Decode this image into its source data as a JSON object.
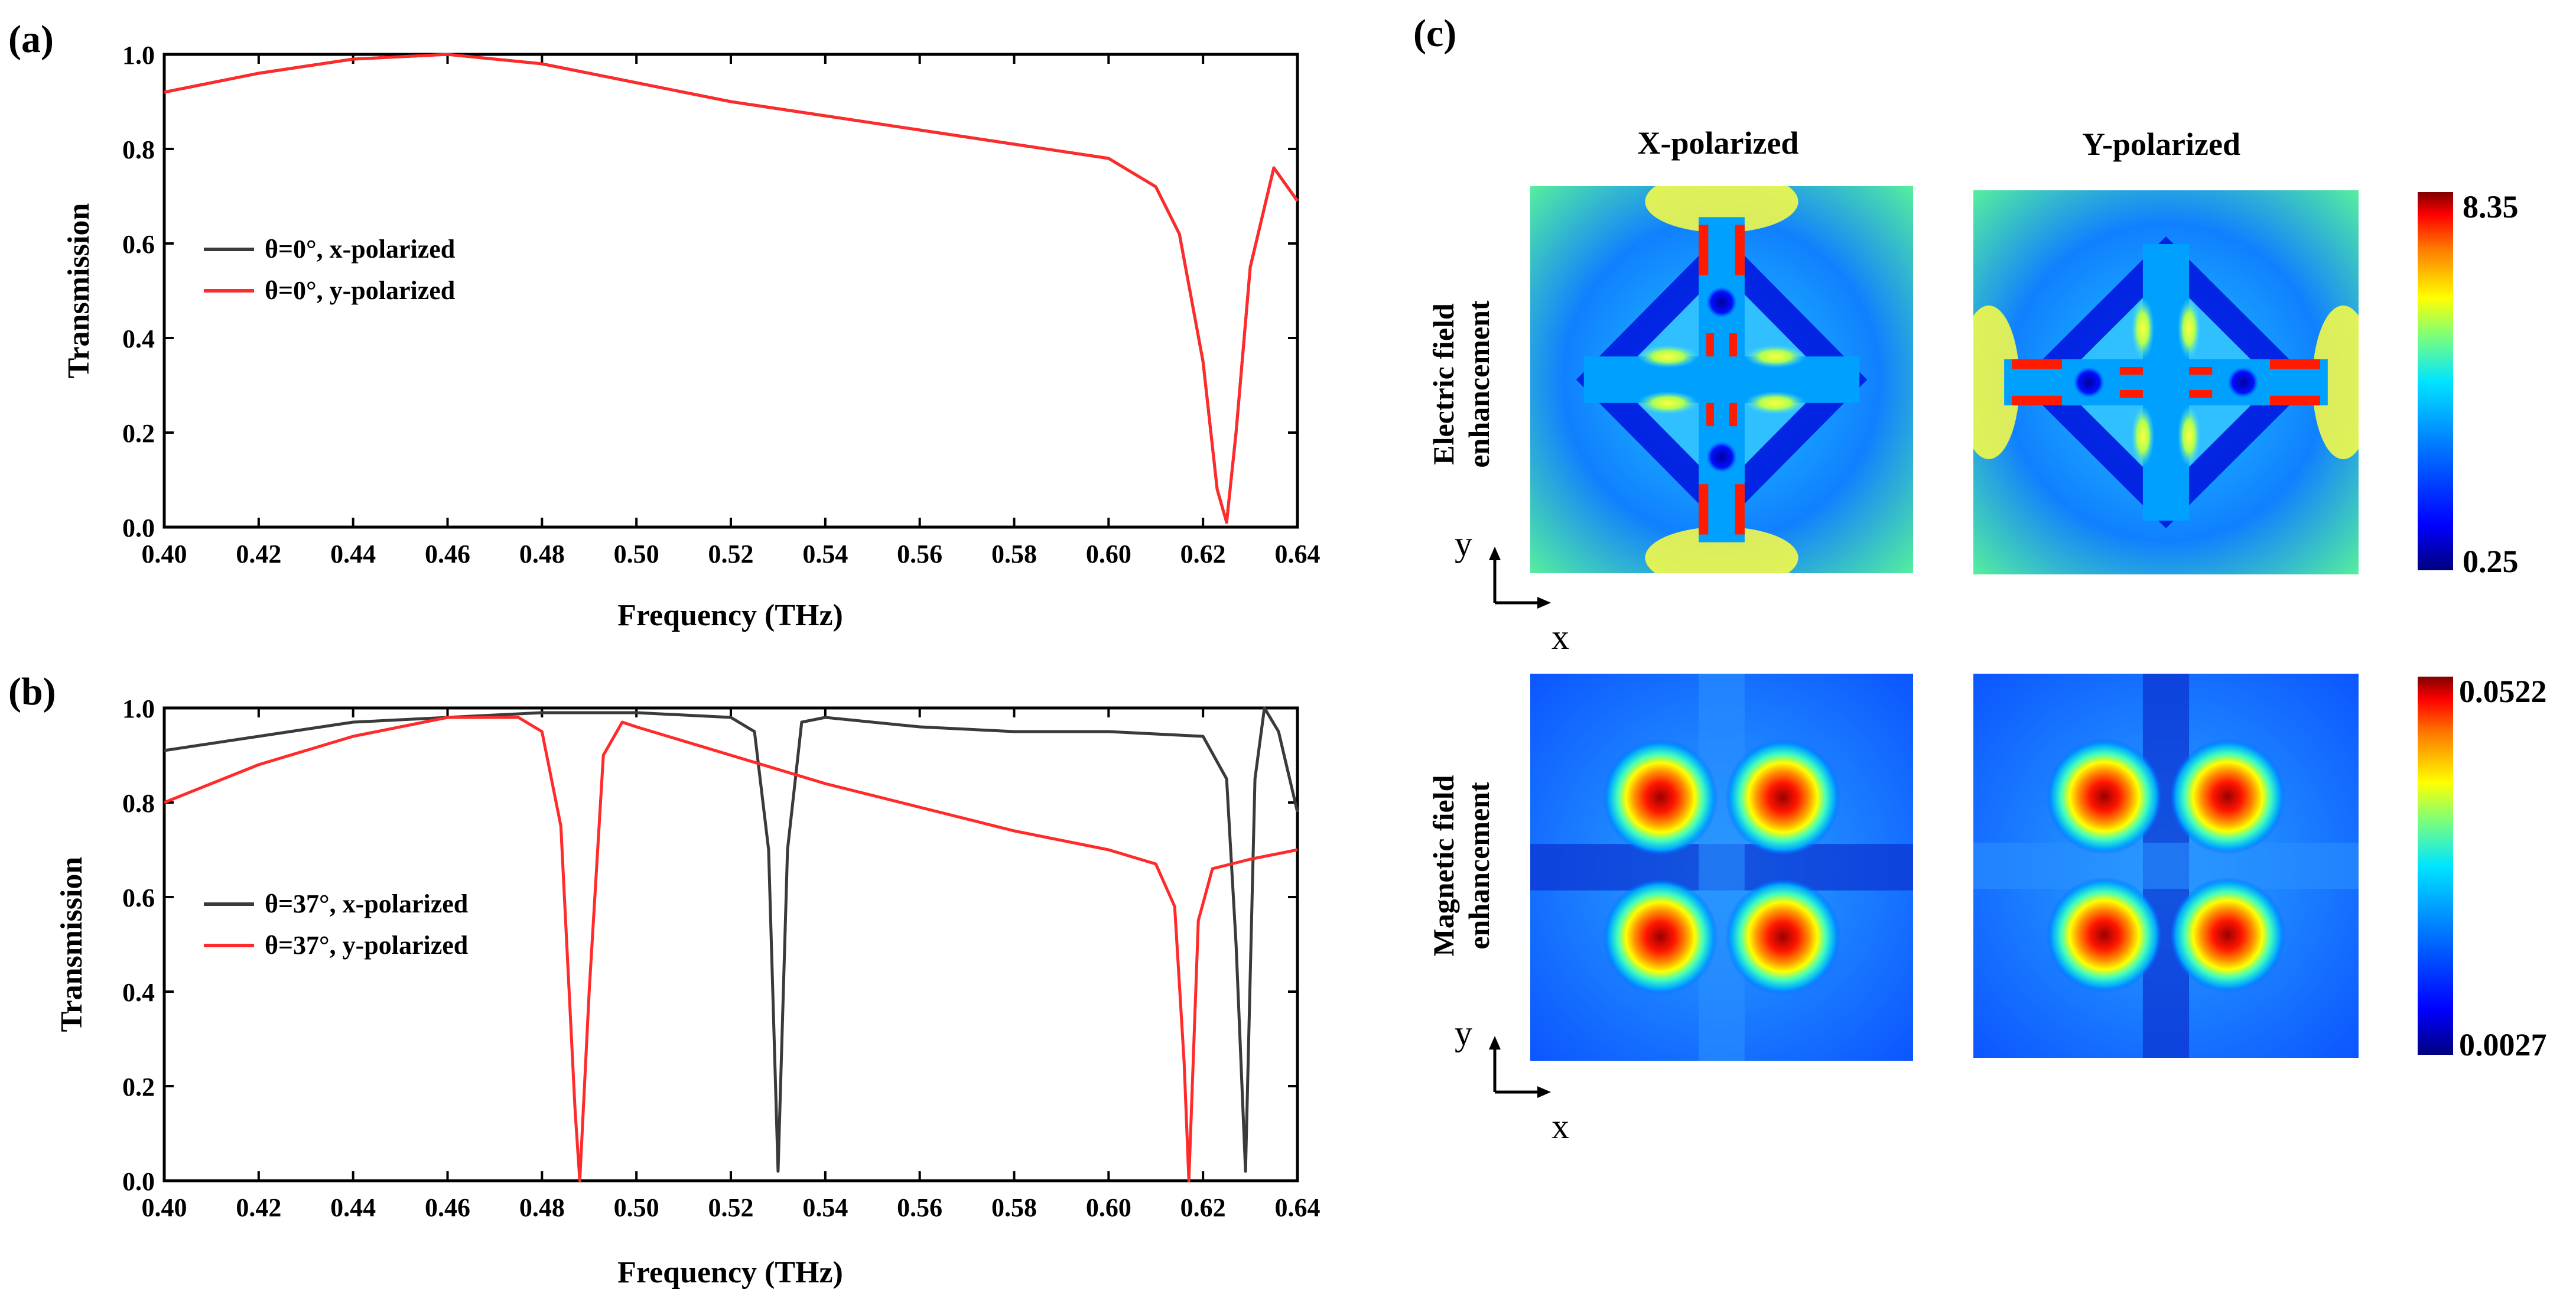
{
  "panels": {
    "a": "(a)",
    "b": "(b)",
    "c": "(c)"
  },
  "chart_data": [
    {
      "type": "line",
      "panel": "(a)",
      "xlabel": "Frequency (THz)",
      "ylabel": "Transmission",
      "xlim": [
        0.4,
        0.64
      ],
      "ylim": [
        0.0,
        1.0
      ],
      "xticks": [
        "0.40",
        "0.42",
        "0.44",
        "0.46",
        "0.48",
        "0.50",
        "0.52",
        "0.54",
        "0.56",
        "0.58",
        "0.60",
        "0.62",
        "0.64"
      ],
      "yticks": [
        "0.0",
        "0.2",
        "0.4",
        "0.6",
        "0.8",
        "1.0"
      ],
      "legend_position": "left-middle",
      "series": [
        {
          "name": "θ=0°, x-polarized",
          "color": "#3a3a3a",
          "x": [
            0.4,
            0.42,
            0.44,
            0.46,
            0.48,
            0.5,
            0.52,
            0.54,
            0.56,
            0.58,
            0.6,
            0.61,
            0.615,
            0.62,
            0.623,
            0.625,
            0.627,
            0.63,
            0.635,
            0.64
          ],
          "y": [
            0.92,
            0.96,
            0.99,
            1.0,
            0.98,
            0.94,
            0.9,
            0.87,
            0.84,
            0.81,
            0.78,
            0.72,
            0.62,
            0.35,
            0.08,
            0.01,
            0.2,
            0.55,
            0.76,
            0.69
          ]
        },
        {
          "name": "θ=0°, y-polarized",
          "color": "#ff2a2a",
          "x": [
            0.4,
            0.42,
            0.44,
            0.46,
            0.48,
            0.5,
            0.52,
            0.54,
            0.56,
            0.58,
            0.6,
            0.61,
            0.615,
            0.62,
            0.623,
            0.625,
            0.627,
            0.63,
            0.635,
            0.64
          ],
          "y": [
            0.92,
            0.96,
            0.99,
            1.0,
            0.98,
            0.94,
            0.9,
            0.87,
            0.84,
            0.81,
            0.78,
            0.72,
            0.62,
            0.35,
            0.08,
            0.01,
            0.2,
            0.55,
            0.76,
            0.69
          ]
        }
      ]
    },
    {
      "type": "line",
      "panel": "(b)",
      "xlabel": "Frequency (THz)",
      "ylabel": "Transmission",
      "xlim": [
        0.4,
        0.64
      ],
      "ylim": [
        0.0,
        1.0
      ],
      "xticks": [
        "0.40",
        "0.42",
        "0.44",
        "0.46",
        "0.48",
        "0.50",
        "0.52",
        "0.54",
        "0.56",
        "0.58",
        "0.60",
        "0.62",
        "0.64"
      ],
      "yticks": [
        "0.0",
        "0.2",
        "0.4",
        "0.6",
        "0.8",
        "1.0"
      ],
      "legend_position": "left-middle",
      "series": [
        {
          "name": "θ=37°, x-polarized",
          "color": "#3a3a3a",
          "x": [
            0.4,
            0.42,
            0.44,
            0.46,
            0.48,
            0.5,
            0.52,
            0.525,
            0.528,
            0.53,
            0.532,
            0.535,
            0.54,
            0.56,
            0.58,
            0.6,
            0.62,
            0.625,
            0.627,
            0.629,
            0.631,
            0.633,
            0.636,
            0.64
          ],
          "y": [
            0.91,
            0.94,
            0.97,
            0.98,
            0.99,
            0.99,
            0.98,
            0.95,
            0.7,
            0.02,
            0.7,
            0.97,
            0.98,
            0.96,
            0.95,
            0.95,
            0.94,
            0.85,
            0.5,
            0.02,
            0.85,
            1.0,
            0.95,
            0.78
          ]
        },
        {
          "name": "θ=37°, y-polarized",
          "color": "#ff2a2a",
          "x": [
            0.4,
            0.42,
            0.44,
            0.46,
            0.475,
            0.48,
            0.484,
            0.487,
            0.488,
            0.49,
            0.493,
            0.497,
            0.5,
            0.52,
            0.54,
            0.56,
            0.58,
            0.6,
            0.61,
            0.614,
            0.616,
            0.617,
            0.619,
            0.622,
            0.63,
            0.64
          ],
          "y": [
            0.8,
            0.88,
            0.94,
            0.98,
            0.98,
            0.95,
            0.75,
            0.15,
            0.0,
            0.4,
            0.9,
            0.97,
            0.96,
            0.9,
            0.84,
            0.79,
            0.74,
            0.7,
            0.67,
            0.58,
            0.25,
            0.0,
            0.55,
            0.66,
            0.68,
            0.7
          ]
        }
      ]
    },
    {
      "type": "heatmap",
      "panel": "(c)",
      "columns": [
        "X-polarized",
        "Y-polarized"
      ],
      "rows": [
        {
          "label_line1": "Electric field",
          "label_line2": "enhancement",
          "colorbar_max": "8.35",
          "colorbar_min": "0.25"
        },
        {
          "label_line1": "Magnetic field",
          "label_line2": "enhancement",
          "colorbar_max": "0.0522",
          "colorbar_min": "0.0027"
        }
      ],
      "axis_x": "x",
      "axis_y": "y",
      "colormap": [
        "#00007f",
        "#0000ff",
        "#0080ff",
        "#00ffff",
        "#80ff80",
        "#ffff00",
        "#ff8000",
        "#ff0000",
        "#7f0000"
      ]
    }
  ]
}
